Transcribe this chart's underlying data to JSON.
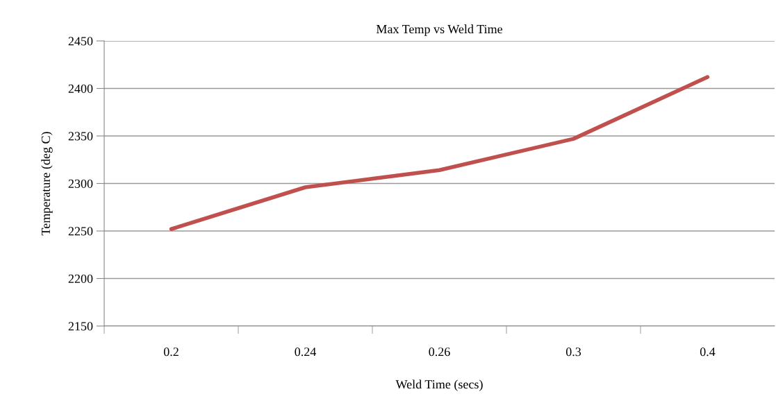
{
  "chart_data": {
    "type": "line",
    "title": "Max Temp vs Weld Time",
    "xlabel": "Weld Time (secs)",
    "ylabel": "Temperature (deg C)",
    "categories": [
      "0.2",
      "0.24",
      "0.26",
      "0.3",
      "0.4"
    ],
    "series": [
      {
        "color": "#c0504d",
        "values": [
          2252,
          2296,
          2314,
          2347,
          2412
        ]
      }
    ],
    "ylim": [
      2150,
      2450
    ],
    "yticks": [
      2150,
      2200,
      2250,
      2300,
      2350,
      2400,
      2450
    ],
    "grid": "y",
    "legend": false,
    "marker": "none",
    "line_style": "solid"
  }
}
